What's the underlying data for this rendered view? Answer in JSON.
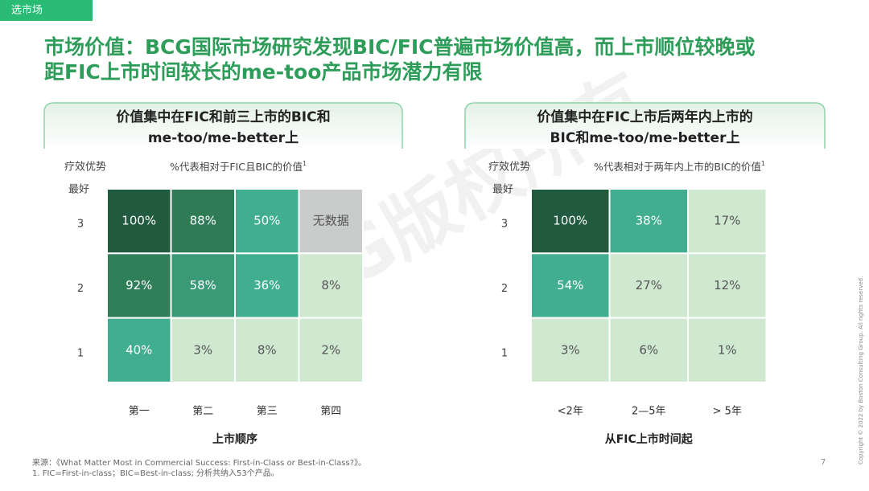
{
  "tab": "选市场",
  "title_lines": [
    "市场价值：BCG国际市场研究发现BIC/FIC普遍市场价值高，而上市顺位较晚或",
    "距FIC上市时间较长的me-too产品市场潜力有限"
  ],
  "panels": [
    {
      "heading_lines": [
        "价值集中在FIC和前三上市的BIC和",
        "me-too/me-better上"
      ],
      "y_label": "疗效优势",
      "y_top": "最好",
      "note": "%代表相对于FIC且BIC的价值",
      "note_sup": "1",
      "rows": [
        "3",
        "2",
        "1"
      ],
      "columns": [
        "第一",
        "第二",
        "第三",
        "第四"
      ],
      "x_title": "上市顺序",
      "cells": [
        [
          "100%",
          "88%",
          "50%",
          "无数据"
        ],
        [
          "92%",
          "58%",
          "36%",
          "8%"
        ],
        [
          "40%",
          "3%",
          "8%",
          "2%"
        ]
      ],
      "colors": [
        [
          "#1f5b3c",
          "#2e7b56",
          "#40ae8f",
          "#c9cccb"
        ],
        [
          "#2f7f59",
          "#3a9a78",
          "#40ae8f",
          "#cfe8d0"
        ],
        [
          "#40ae8f",
          "#cfe8d0",
          "#cfe8d0",
          "#cfe8d0"
        ]
      ]
    },
    {
      "heading_lines": [
        "价值集中在FIC上市后两年内上市的",
        "BIC和me-too/me-better上"
      ],
      "y_label": "疗效优势",
      "y_top": "最好",
      "note": "%代表相对于两年内上市的BIC的价值",
      "note_sup": "1",
      "rows": [
        "3",
        "2",
        "1"
      ],
      "columns": [
        "<2年",
        "2—5年",
        "> 5年"
      ],
      "x_title": "从FIC上市时间起",
      "cells": [
        [
          "100%",
          "38%",
          "17%"
        ],
        [
          "54%",
          "27%",
          "12%"
        ],
        [
          "3%",
          "6%",
          "1%"
        ]
      ],
      "colors": [
        [
          "#1f5b3c",
          "#40ae8f",
          "#cfe8d0"
        ],
        [
          "#40ae8f",
          "#cfe8d0",
          "#cfe8d0"
        ],
        [
          "#cfe8d0",
          "#cfe8d0",
          "#cfe8d0"
        ]
      ]
    }
  ],
  "footnotes": [
    "来源：《What Matter Most in Commercial Success: First-in-Class or Best-in-Class?》。",
    "1. FIC=First-in-class；BIC=Best-in-class; 分析共纳入53个产品。"
  ],
  "page_number": "7",
  "copyright": "Copyright © 2022 by Boston Consulting Group. All rights reserved.",
  "watermark": "BCG版权所有"
}
